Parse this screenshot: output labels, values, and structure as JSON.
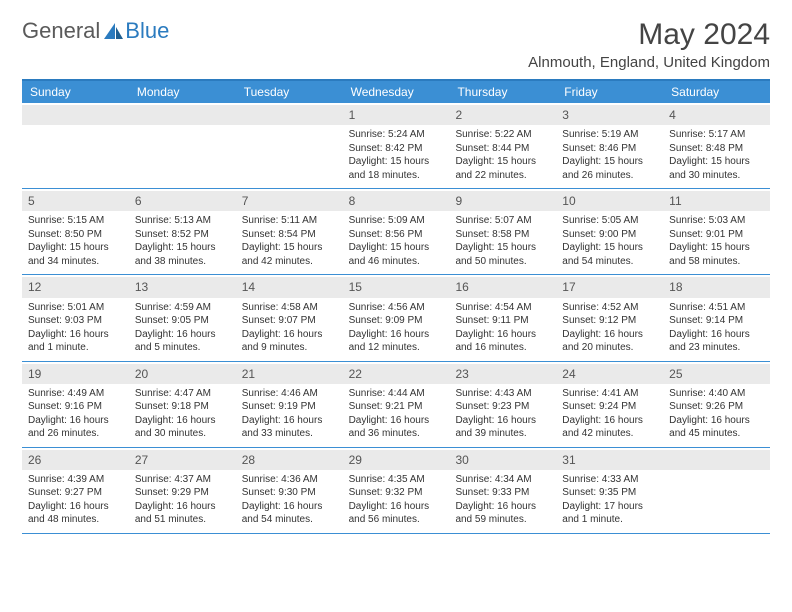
{
  "brand": {
    "part1": "General",
    "part2": "Blue"
  },
  "title": "May 2024",
  "location": "Alnmouth, England, United Kingdom",
  "colors": {
    "header_blue": "#3b8fd4",
    "rule_blue": "#2b7bbf",
    "daynum_bg": "#eaeaea",
    "text": "#333333"
  },
  "day_names": [
    "Sunday",
    "Monday",
    "Tuesday",
    "Wednesday",
    "Thursday",
    "Friday",
    "Saturday"
  ],
  "weeks": [
    [
      null,
      null,
      null,
      {
        "n": "1",
        "sr": "Sunrise: 5:24 AM",
        "ss": "Sunset: 8:42 PM",
        "dl1": "Daylight: 15 hours",
        "dl2": "and 18 minutes."
      },
      {
        "n": "2",
        "sr": "Sunrise: 5:22 AM",
        "ss": "Sunset: 8:44 PM",
        "dl1": "Daylight: 15 hours",
        "dl2": "and 22 minutes."
      },
      {
        "n": "3",
        "sr": "Sunrise: 5:19 AM",
        "ss": "Sunset: 8:46 PM",
        "dl1": "Daylight: 15 hours",
        "dl2": "and 26 minutes."
      },
      {
        "n": "4",
        "sr": "Sunrise: 5:17 AM",
        "ss": "Sunset: 8:48 PM",
        "dl1": "Daylight: 15 hours",
        "dl2": "and 30 minutes."
      }
    ],
    [
      {
        "n": "5",
        "sr": "Sunrise: 5:15 AM",
        "ss": "Sunset: 8:50 PM",
        "dl1": "Daylight: 15 hours",
        "dl2": "and 34 minutes."
      },
      {
        "n": "6",
        "sr": "Sunrise: 5:13 AM",
        "ss": "Sunset: 8:52 PM",
        "dl1": "Daylight: 15 hours",
        "dl2": "and 38 minutes."
      },
      {
        "n": "7",
        "sr": "Sunrise: 5:11 AM",
        "ss": "Sunset: 8:54 PM",
        "dl1": "Daylight: 15 hours",
        "dl2": "and 42 minutes."
      },
      {
        "n": "8",
        "sr": "Sunrise: 5:09 AM",
        "ss": "Sunset: 8:56 PM",
        "dl1": "Daylight: 15 hours",
        "dl2": "and 46 minutes."
      },
      {
        "n": "9",
        "sr": "Sunrise: 5:07 AM",
        "ss": "Sunset: 8:58 PM",
        "dl1": "Daylight: 15 hours",
        "dl2": "and 50 minutes."
      },
      {
        "n": "10",
        "sr": "Sunrise: 5:05 AM",
        "ss": "Sunset: 9:00 PM",
        "dl1": "Daylight: 15 hours",
        "dl2": "and 54 minutes."
      },
      {
        "n": "11",
        "sr": "Sunrise: 5:03 AM",
        "ss": "Sunset: 9:01 PM",
        "dl1": "Daylight: 15 hours",
        "dl2": "and 58 minutes."
      }
    ],
    [
      {
        "n": "12",
        "sr": "Sunrise: 5:01 AM",
        "ss": "Sunset: 9:03 PM",
        "dl1": "Daylight: 16 hours",
        "dl2": "and 1 minute."
      },
      {
        "n": "13",
        "sr": "Sunrise: 4:59 AM",
        "ss": "Sunset: 9:05 PM",
        "dl1": "Daylight: 16 hours",
        "dl2": "and 5 minutes."
      },
      {
        "n": "14",
        "sr": "Sunrise: 4:58 AM",
        "ss": "Sunset: 9:07 PM",
        "dl1": "Daylight: 16 hours",
        "dl2": "and 9 minutes."
      },
      {
        "n": "15",
        "sr": "Sunrise: 4:56 AM",
        "ss": "Sunset: 9:09 PM",
        "dl1": "Daylight: 16 hours",
        "dl2": "and 12 minutes."
      },
      {
        "n": "16",
        "sr": "Sunrise: 4:54 AM",
        "ss": "Sunset: 9:11 PM",
        "dl1": "Daylight: 16 hours",
        "dl2": "and 16 minutes."
      },
      {
        "n": "17",
        "sr": "Sunrise: 4:52 AM",
        "ss": "Sunset: 9:12 PM",
        "dl1": "Daylight: 16 hours",
        "dl2": "and 20 minutes."
      },
      {
        "n": "18",
        "sr": "Sunrise: 4:51 AM",
        "ss": "Sunset: 9:14 PM",
        "dl1": "Daylight: 16 hours",
        "dl2": "and 23 minutes."
      }
    ],
    [
      {
        "n": "19",
        "sr": "Sunrise: 4:49 AM",
        "ss": "Sunset: 9:16 PM",
        "dl1": "Daylight: 16 hours",
        "dl2": "and 26 minutes."
      },
      {
        "n": "20",
        "sr": "Sunrise: 4:47 AM",
        "ss": "Sunset: 9:18 PM",
        "dl1": "Daylight: 16 hours",
        "dl2": "and 30 minutes."
      },
      {
        "n": "21",
        "sr": "Sunrise: 4:46 AM",
        "ss": "Sunset: 9:19 PM",
        "dl1": "Daylight: 16 hours",
        "dl2": "and 33 minutes."
      },
      {
        "n": "22",
        "sr": "Sunrise: 4:44 AM",
        "ss": "Sunset: 9:21 PM",
        "dl1": "Daylight: 16 hours",
        "dl2": "and 36 minutes."
      },
      {
        "n": "23",
        "sr": "Sunrise: 4:43 AM",
        "ss": "Sunset: 9:23 PM",
        "dl1": "Daylight: 16 hours",
        "dl2": "and 39 minutes."
      },
      {
        "n": "24",
        "sr": "Sunrise: 4:41 AM",
        "ss": "Sunset: 9:24 PM",
        "dl1": "Daylight: 16 hours",
        "dl2": "and 42 minutes."
      },
      {
        "n": "25",
        "sr": "Sunrise: 4:40 AM",
        "ss": "Sunset: 9:26 PM",
        "dl1": "Daylight: 16 hours",
        "dl2": "and 45 minutes."
      }
    ],
    [
      {
        "n": "26",
        "sr": "Sunrise: 4:39 AM",
        "ss": "Sunset: 9:27 PM",
        "dl1": "Daylight: 16 hours",
        "dl2": "and 48 minutes."
      },
      {
        "n": "27",
        "sr": "Sunrise: 4:37 AM",
        "ss": "Sunset: 9:29 PM",
        "dl1": "Daylight: 16 hours",
        "dl2": "and 51 minutes."
      },
      {
        "n": "28",
        "sr": "Sunrise: 4:36 AM",
        "ss": "Sunset: 9:30 PM",
        "dl1": "Daylight: 16 hours",
        "dl2": "and 54 minutes."
      },
      {
        "n": "29",
        "sr": "Sunrise: 4:35 AM",
        "ss": "Sunset: 9:32 PM",
        "dl1": "Daylight: 16 hours",
        "dl2": "and 56 minutes."
      },
      {
        "n": "30",
        "sr": "Sunrise: 4:34 AM",
        "ss": "Sunset: 9:33 PM",
        "dl1": "Daylight: 16 hours",
        "dl2": "and 59 minutes."
      },
      {
        "n": "31",
        "sr": "Sunrise: 4:33 AM",
        "ss": "Sunset: 9:35 PM",
        "dl1": "Daylight: 17 hours",
        "dl2": "and 1 minute."
      },
      null
    ]
  ]
}
